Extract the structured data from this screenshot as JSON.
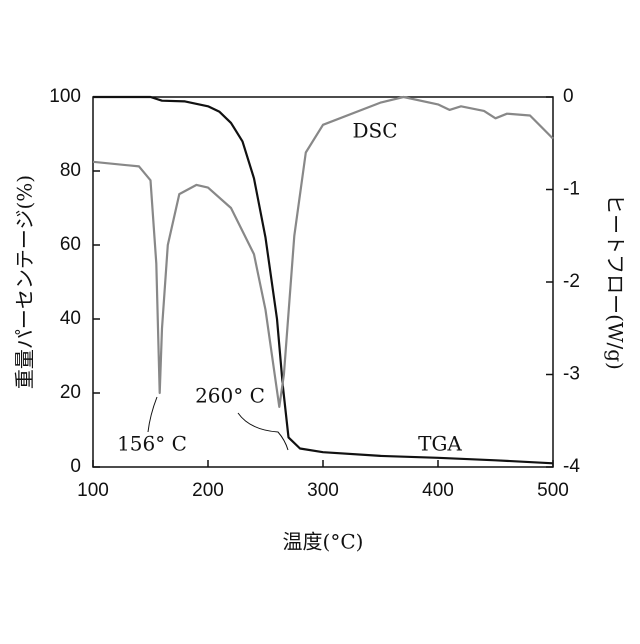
{
  "chart_data": {
    "type": "line",
    "xlabel": "温度(°C)",
    "ylabel": "重量パーセンテージ(%)",
    "y2label": "ヒートフロー(W/g)",
    "xlim": [
      100,
      500
    ],
    "xticks": [
      100,
      200,
      300,
      400,
      500
    ],
    "ylim": [
      0,
      100
    ],
    "yticks": [
      0,
      20,
      40,
      60,
      80,
      100
    ],
    "y2lim": [
      -4,
      0
    ],
    "y2ticks": [
      -4,
      -3,
      -2,
      -1,
      0
    ],
    "series": [
      {
        "name": "TGA",
        "color": "#111111",
        "x": [
          100,
          150,
          160,
          180,
          200,
          210,
          220,
          230,
          240,
          250,
          260,
          265,
          270,
          280,
          300,
          350,
          400,
          450,
          500
        ],
        "values": [
          100,
          100,
          99,
          98.8,
          97.5,
          96,
          93,
          88,
          78,
          62,
          40,
          22,
          8,
          5,
          4,
          3,
          2.5,
          1.8,
          1
        ]
      },
      {
        "name": "DSC",
        "color": "#888888",
        "axis": "y2",
        "x": [
          100,
          140,
          150,
          155,
          158,
          160,
          165,
          175,
          190,
          200,
          220,
          240,
          250,
          258,
          262,
          266,
          275,
          285,
          300,
          350,
          370,
          400,
          410,
          420,
          440,
          450,
          460,
          480,
          500
        ],
        "values": [
          -0.7,
          -0.75,
          -0.9,
          -1.8,
          -3.2,
          -2.5,
          -1.6,
          -1.05,
          -0.95,
          -0.98,
          -1.2,
          -1.7,
          -2.3,
          -3.0,
          -3.35,
          -3.0,
          -1.5,
          -0.6,
          -0.3,
          -0.06,
          0,
          -0.08,
          -0.14,
          -0.1,
          -0.15,
          -0.23,
          -0.18,
          -0.2,
          -0.45
        ]
      }
    ],
    "annotations": [
      "DSC",
      "TGA",
      "156° C",
      "260° C"
    ]
  }
}
